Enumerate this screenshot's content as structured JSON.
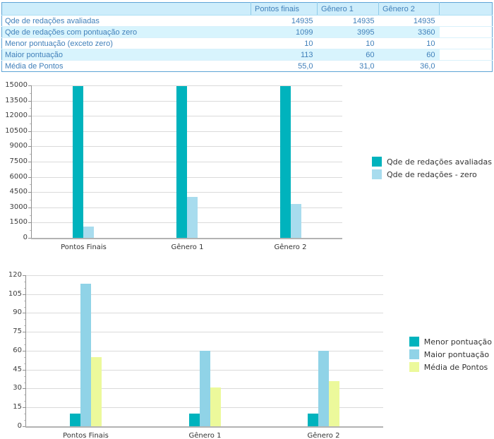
{
  "table": {
    "corner": "",
    "columns": [
      "Pontos finais",
      "Gênero 1",
      "Gênero 2"
    ],
    "rows": [
      {
        "label": "Qde de redações avaliadas",
        "values": [
          "14935",
          "14935",
          "14935"
        ]
      },
      {
        "label": "Qde de redações com pontuação zero",
        "values": [
          "1099",
          "3995",
          "3360"
        ]
      },
      {
        "label": "Menor pontuação (exceto zero)",
        "values": [
          "10",
          "10",
          "10"
        ]
      },
      {
        "label": "Maior pontuação",
        "values": [
          "113",
          "60",
          "60"
        ]
      },
      {
        "label": "Média de Pontos",
        "values": [
          "55,0",
          "31,0",
          "36,0"
        ]
      }
    ]
  },
  "chart_data": [
    {
      "type": "bar",
      "title": "",
      "categories": [
        "Pontos Finais",
        "Gênero 1",
        "Gênero 2"
      ],
      "series": [
        {
          "name": "Qde de redações avaliadas",
          "color": "#00b3bd",
          "values": [
            14935,
            14935,
            14935
          ]
        },
        {
          "name": "Qde de redações - zero",
          "color": "#a8dcee",
          "values": [
            1099,
            3995,
            3360
          ]
        }
      ],
      "ylim": [
        0,
        15000
      ],
      "ytick_step": 1500,
      "grid": true,
      "legend_position": "right"
    },
    {
      "type": "bar",
      "title": "",
      "categories": [
        "Pontos Finais",
        "Gênero 1",
        "Gênero 2"
      ],
      "series": [
        {
          "name": "Menor pontuação",
          "color": "#00b3bd",
          "values": [
            10,
            10,
            10
          ]
        },
        {
          "name": "Maior pontuação",
          "color": "#90d3e7",
          "values": [
            113,
            60,
            60
          ]
        },
        {
          "name": "Média de Pontos",
          "color": "#ecf99b",
          "values": [
            55,
            31,
            36
          ]
        }
      ],
      "ylim": [
        0,
        120
      ],
      "ytick_step": 15,
      "grid": true,
      "legend_position": "right"
    }
  ]
}
